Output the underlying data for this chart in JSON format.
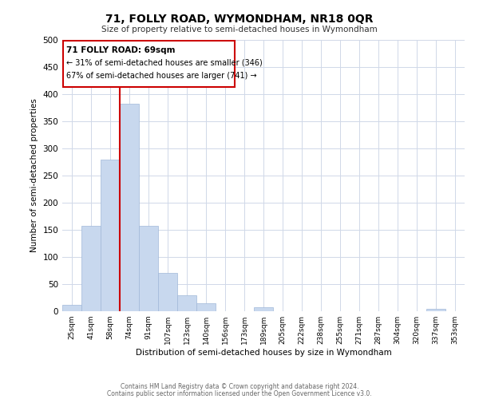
{
  "title": "71, FOLLY ROAD, WYMONDHAM, NR18 0QR",
  "subtitle": "Size of property relative to semi-detached houses in Wymondham",
  "xlabel": "Distribution of semi-detached houses by size in Wymondham",
  "ylabel": "Number of semi-detached properties",
  "footnote1": "Contains HM Land Registry data © Crown copyright and database right 2024.",
  "footnote2": "Contains public sector information licensed under the Open Government Licence v3.0.",
  "bar_labels": [
    "25sqm",
    "41sqm",
    "58sqm",
    "74sqm",
    "91sqm",
    "107sqm",
    "123sqm",
    "140sqm",
    "156sqm",
    "173sqm",
    "189sqm",
    "205sqm",
    "222sqm",
    "238sqm",
    "255sqm",
    "271sqm",
    "287sqm",
    "304sqm",
    "320sqm",
    "337sqm",
    "353sqm"
  ],
  "bar_values": [
    12,
    158,
    280,
    383,
    157,
    70,
    30,
    15,
    0,
    0,
    7,
    0,
    0,
    0,
    0,
    0,
    0,
    0,
    0,
    4,
    0
  ],
  "bar_color": "#c8d8ee",
  "bar_edge_color": "#a0b8d8",
  "property_line_label": "71 FOLLY ROAD: 69sqm",
  "pct_smaller": 31,
  "pct_larger": 67,
  "count_smaller": 346,
  "count_larger": 741,
  "annotation_box_edge": "#cc0000",
  "line_color": "#cc0000",
  "ylim": [
    0,
    500
  ],
  "yticks": [
    0,
    50,
    100,
    150,
    200,
    250,
    300,
    350,
    400,
    450,
    500
  ],
  "bg_color": "#ffffff",
  "grid_color": "#d0d8e8"
}
